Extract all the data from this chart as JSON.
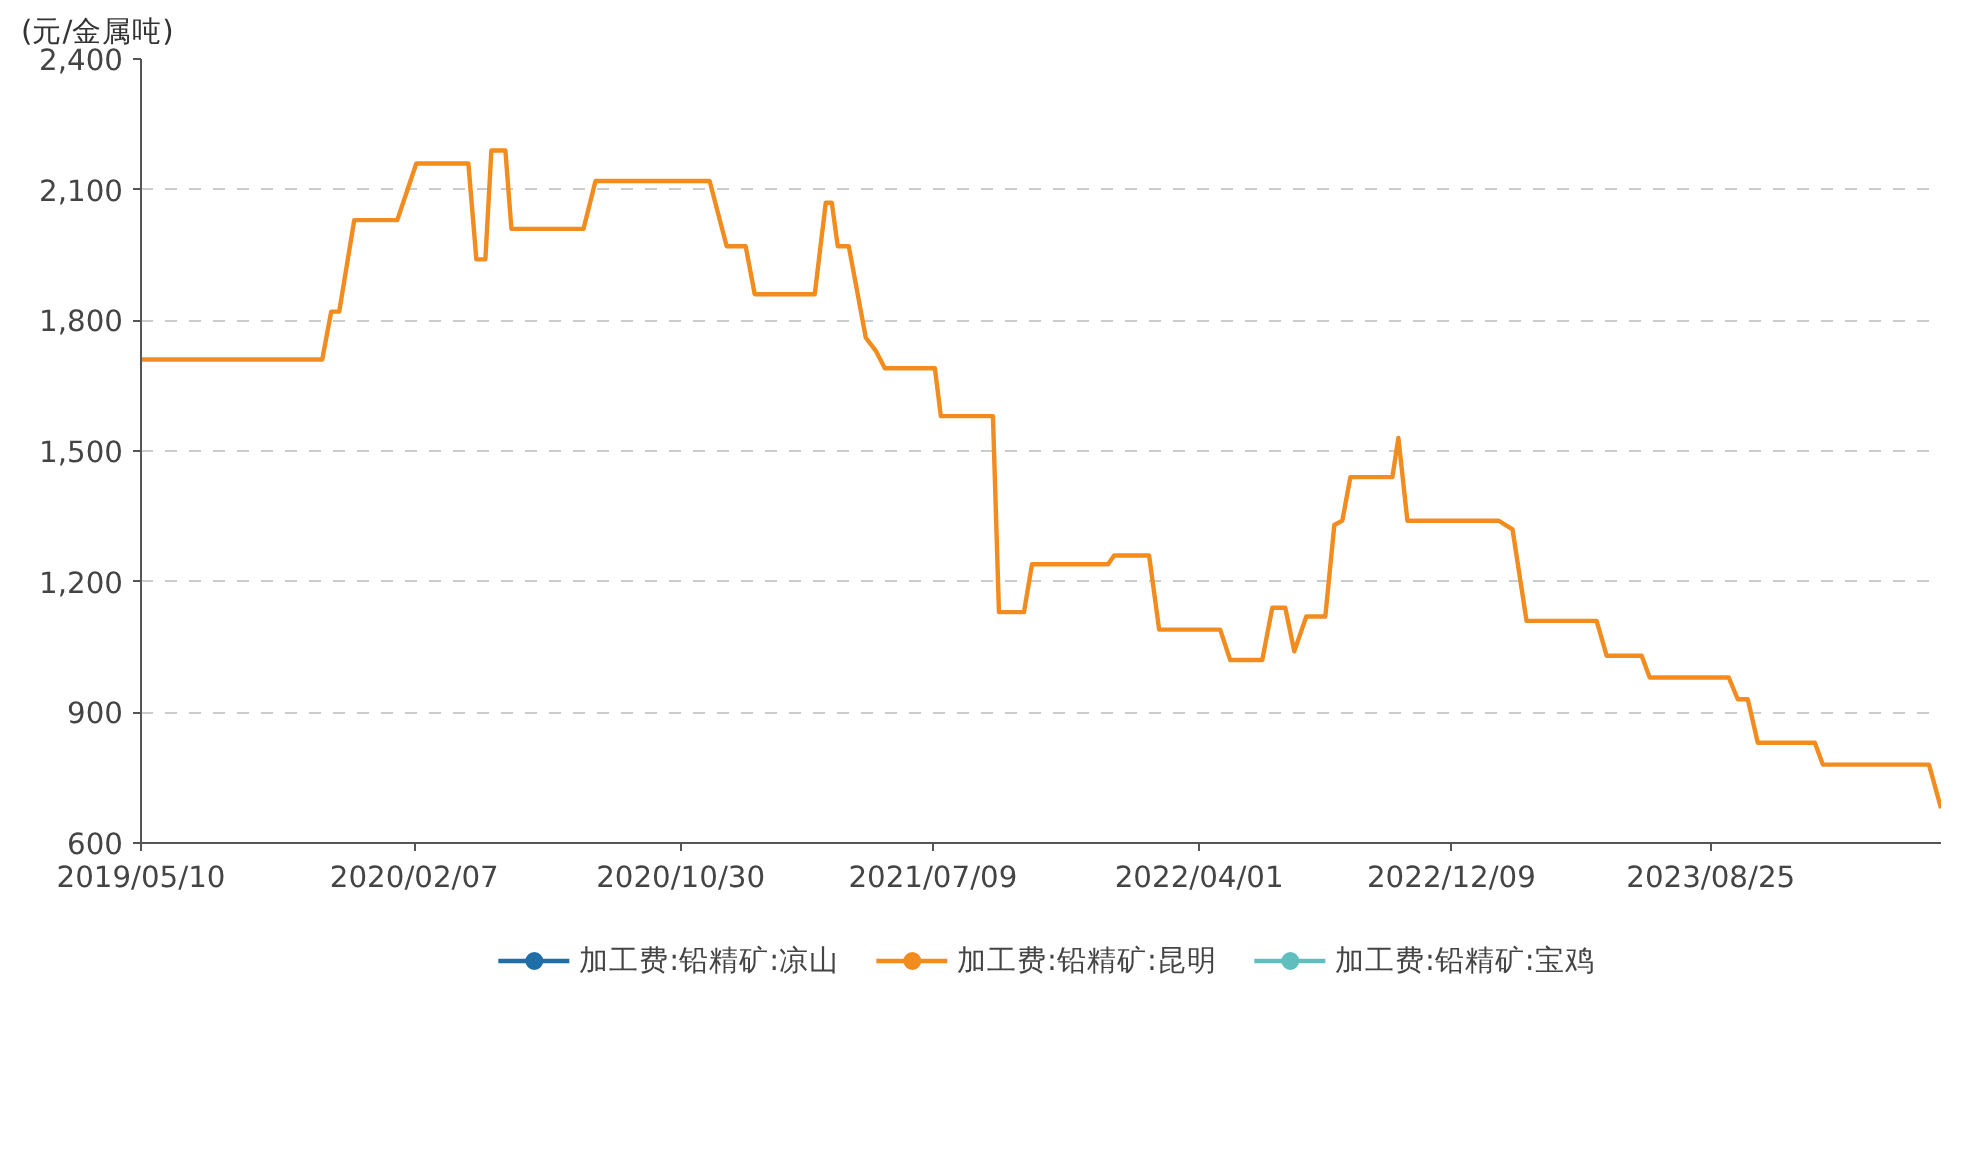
{
  "chart_data": {
    "type": "line",
    "ylabel": "(元/金属吨)",
    "x": [
      "2019-05-10",
      "2019-11-07",
      "2019-11-16",
      "2019-11-24",
      "2019-12-09",
      "2020-01-21",
      "2020-02-09",
      "2020-04-01",
      "2020-04-09",
      "2020-04-18",
      "2020-04-24",
      "2020-05-08",
      "2020-05-14",
      "2020-07-25",
      "2020-08-06",
      "2020-11-28",
      "2020-12-15",
      "2021-01-03",
      "2021-01-12",
      "2021-03-13",
      "2021-03-24",
      "2021-03-30",
      "2021-04-05",
      "2021-04-16",
      "2021-05-03",
      "2021-05-13",
      "2021-05-22",
      "2021-07-11",
      "2021-07-17",
      "2021-09-07",
      "2021-09-13",
      "2021-10-08",
      "2021-10-16",
      "2021-12-31",
      "2022-01-06",
      "2022-02-10",
      "2022-02-20",
      "2022-04-22",
      "2022-05-02",
      "2022-06-03",
      "2022-06-13",
      "2022-06-26",
      "2022-07-05",
      "2022-07-17",
      "2022-08-05",
      "2022-08-14",
      "2022-08-22",
      "2022-08-30",
      "2022-10-11",
      "2022-10-17",
      "2022-10-26",
      "2023-01-25",
      "2023-02-08",
      "2023-02-22",
      "2023-05-03",
      "2023-05-13",
      "2023-06-17",
      "2023-06-25",
      "2023-09-12",
      "2023-09-21",
      "2023-10-01",
      "2023-10-11",
      "2023-12-07",
      "2023-12-15",
      "2024-03-30",
      "2024-04-11"
    ],
    "series": [
      {
        "name": "加工费:铅精矿:凉山",
        "color": "#1f6fa6",
        "values": [
          null,
          null,
          null,
          null,
          null,
          null,
          null,
          null,
          null,
          null,
          null,
          null,
          null,
          null,
          null,
          null,
          null,
          null,
          null,
          null,
          null,
          null,
          null,
          null,
          null,
          null,
          null,
          null,
          null,
          null,
          null,
          null,
          null,
          null,
          null,
          null,
          null,
          null,
          null,
          null,
          null,
          null,
          null,
          null,
          null,
          null,
          null,
          null,
          null,
          null,
          null,
          null,
          null,
          null,
          null,
          null,
          null,
          null,
          null,
          null,
          null,
          null,
          null,
          null,
          null,
          null
        ]
      },
      {
        "name": "加工费:铅精矿:昆明",
        "color": "#f28c1e",
        "values": [
          1710,
          1710,
          1820,
          1820,
          2030,
          2030,
          2160,
          2160,
          1940,
          1940,
          2190,
          2190,
          2010,
          2010,
          2120,
          2120,
          1970,
          1970,
          1860,
          1860,
          2070,
          2070,
          1970,
          1970,
          1760,
          1730,
          1690,
          1690,
          1580,
          1580,
          1130,
          1130,
          1240,
          1240,
          1260,
          1260,
          1090,
          1090,
          1020,
          1020,
          1140,
          1140,
          1040,
          1120,
          1120,
          1330,
          1340,
          1440,
          1440,
          1530,
          1340,
          1340,
          1320,
          1110,
          1110,
          1030,
          1030,
          980,
          980,
          930,
          930,
          830,
          830,
          780,
          780,
          680
        ]
      },
      {
        "name": "加工费:铅精矿:宝鸡",
        "color": "#5fbfbf",
        "values": [
          null,
          null,
          null,
          null,
          null,
          null,
          null,
          null,
          null,
          null,
          null,
          null,
          null,
          null,
          null,
          null,
          null,
          null,
          null,
          null,
          null,
          null,
          null,
          null,
          null,
          null,
          null,
          null,
          null,
          null,
          null,
          null,
          null,
          null,
          null,
          null,
          null,
          null,
          null,
          null,
          null,
          null,
          null,
          null,
          null,
          null,
          null,
          null,
          null,
          null,
          null,
          null,
          null,
          null,
          null,
          null,
          null,
          null,
          null,
          null,
          null,
          null,
          null,
          null,
          null,
          null
        ]
      }
    ],
    "xlim": [
      "2019-05-10",
      "2024-04-11"
    ],
    "xticks": [
      {
        "value": "2019-05-10",
        "label": "2019/05/10"
      },
      {
        "value": "2020-02-07",
        "label": "2020/02/07"
      },
      {
        "value": "2020-10-30",
        "label": "2020/10/30"
      },
      {
        "value": "2021-07-09",
        "label": "2021/07/09"
      },
      {
        "value": "2022-04-01",
        "label": "2022/04/01"
      },
      {
        "value": "2022-12-09",
        "label": "2022/12/09"
      },
      {
        "value": "2023-08-25",
        "label": "2023/08/25"
      }
    ],
    "ylim": [
      600,
      2400
    ],
    "yticks": [
      600,
      {
        "value": 900,
        "label": "900"
      },
      {
        "value": 1200,
        "label": "1,200"
      },
      {
        "value": 1500,
        "label": "1,500"
      },
      {
        "value": 1800,
        "label": "1,800"
      },
      {
        "value": 2100,
        "label": "2,100"
      },
      {
        "value": 2400,
        "label": "2,400"
      }
    ],
    "grid": "y",
    "legend": "bottom"
  }
}
